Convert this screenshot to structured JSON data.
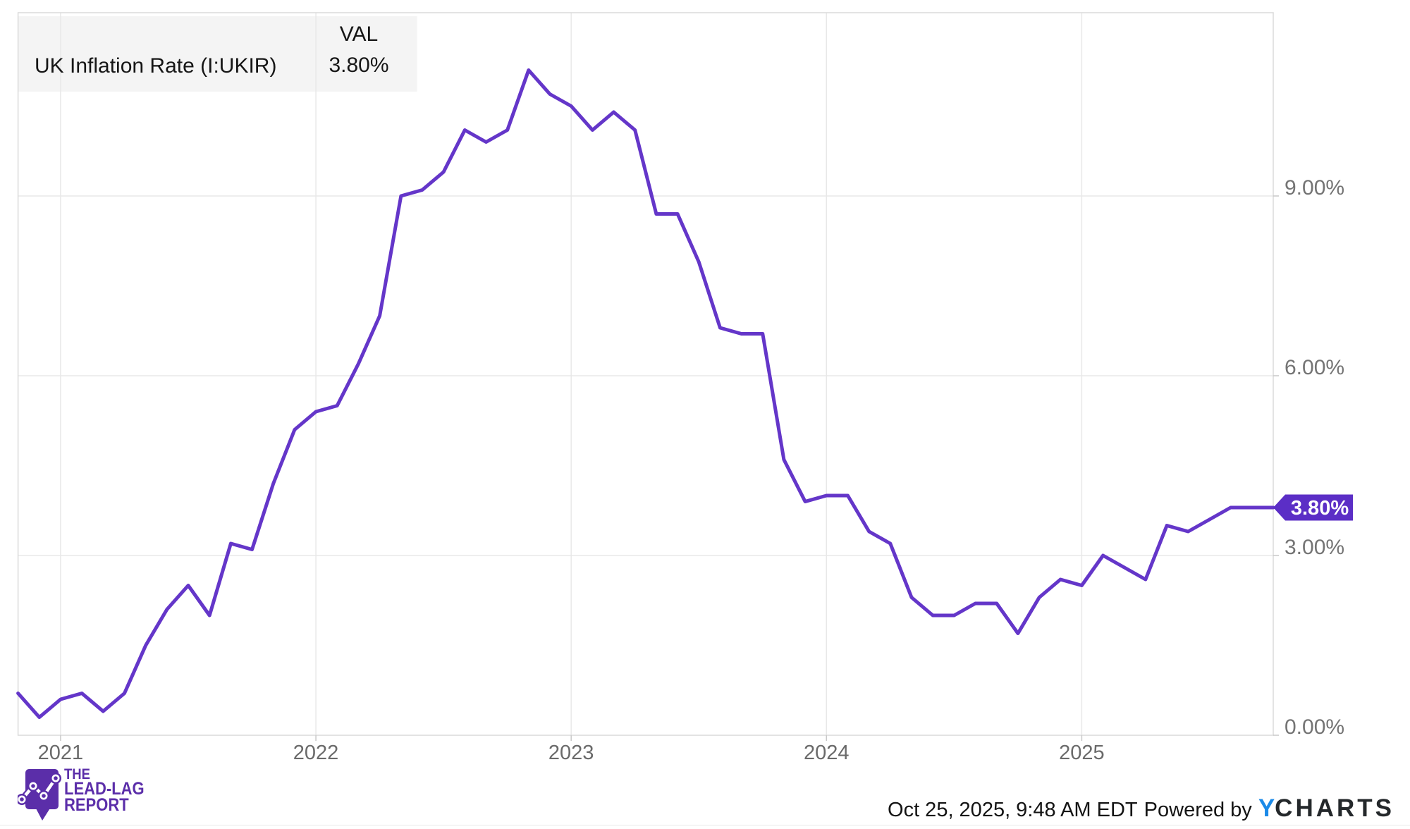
{
  "legend": {
    "series_label": "UK Inflation Rate (I:UKIR)",
    "value_header": "VAL",
    "value": "3.80%"
  },
  "footer": {
    "timestamp": "Oct 25, 2025, 9:48 AM EDT",
    "powered_by": "Powered by",
    "brand_y": "Y",
    "brand_rest": "CHARTS"
  },
  "watermark": {
    "line1": "THE",
    "line2": "LEAD-LAG",
    "line3": "REPORT"
  },
  "colors": {
    "line_purple": "#6436C9",
    "badge_purple": "#5B2EC6",
    "brand_blue": "#1B8AE8",
    "brand_dark": "#24282B",
    "watermark_purple": "#5B2EA9",
    "grid": "#e8e8e8",
    "border": "#dadada",
    "tick": "#c9c9c9",
    "axis_text": "#747474",
    "legend_bg": "#f4f4f4"
  },
  "chart_data": {
    "type": "line",
    "title": "UK Inflation Rate (I:UKIR)",
    "series": [
      {
        "name": "UK Inflation Rate (I:UKIR)"
      }
    ],
    "x": [
      "2020-10",
      "2020-11",
      "2020-12",
      "2021-01",
      "2021-02",
      "2021-03",
      "2021-04",
      "2021-05",
      "2021-06",
      "2021-07",
      "2021-08",
      "2021-09",
      "2021-10",
      "2021-11",
      "2021-12",
      "2022-01",
      "2022-02",
      "2022-03",
      "2022-04",
      "2022-05",
      "2022-06",
      "2022-07",
      "2022-08",
      "2022-09",
      "2022-10",
      "2022-11",
      "2022-12",
      "2023-01",
      "2023-02",
      "2023-03",
      "2023-04",
      "2023-05",
      "2023-06",
      "2023-07",
      "2023-08",
      "2023-09",
      "2023-10",
      "2023-11",
      "2023-12",
      "2024-01",
      "2024-02",
      "2024-03",
      "2024-04",
      "2024-05",
      "2024-06",
      "2024-07",
      "2024-08",
      "2024-09",
      "2024-10",
      "2024-11",
      "2024-12",
      "2025-01",
      "2025-02",
      "2025-03",
      "2025-04",
      "2025-05",
      "2025-06",
      "2025-07",
      "2025-08",
      "2025-09"
    ],
    "values": [
      0.7,
      0.3,
      0.6,
      0.7,
      0.4,
      0.7,
      1.5,
      2.1,
      2.5,
      2.0,
      3.2,
      3.1,
      4.2,
      5.1,
      5.4,
      5.5,
      6.2,
      7.0,
      9.0,
      9.1,
      9.4,
      10.1,
      9.9,
      10.1,
      11.1,
      10.7,
      10.5,
      10.1,
      10.4,
      10.1,
      8.7,
      8.7,
      7.9,
      6.8,
      6.7,
      6.7,
      4.6,
      3.9,
      4.0,
      4.0,
      3.4,
      3.2,
      2.3,
      2.0,
      2.0,
      2.2,
      2.2,
      1.7,
      2.3,
      2.6,
      2.5,
      3.0,
      2.8,
      2.6,
      3.5,
      3.4,
      3.6,
      3.8,
      3.8,
      3.8
    ],
    "unit": "%",
    "y_ticks": [
      {
        "value": 0,
        "label": "0.00%"
      },
      {
        "value": 3,
        "label": "3.00%"
      },
      {
        "value": 6,
        "label": "6.00%"
      },
      {
        "value": 9,
        "label": "9.00%"
      }
    ],
    "x_ticks": [
      {
        "index": 2,
        "label": "2021"
      },
      {
        "index": 14,
        "label": "2022"
      },
      {
        "index": 26,
        "label": "2023"
      },
      {
        "index": 38,
        "label": "2024"
      },
      {
        "index": 50,
        "label": "2025"
      }
    ],
    "ylim": [
      0,
      12.06
    ],
    "grid": true,
    "legend_position": "top-left",
    "y_axis_side": "right",
    "line_color": "#6436C9",
    "last_value": 3.8,
    "last_value_label": "3.80%"
  }
}
